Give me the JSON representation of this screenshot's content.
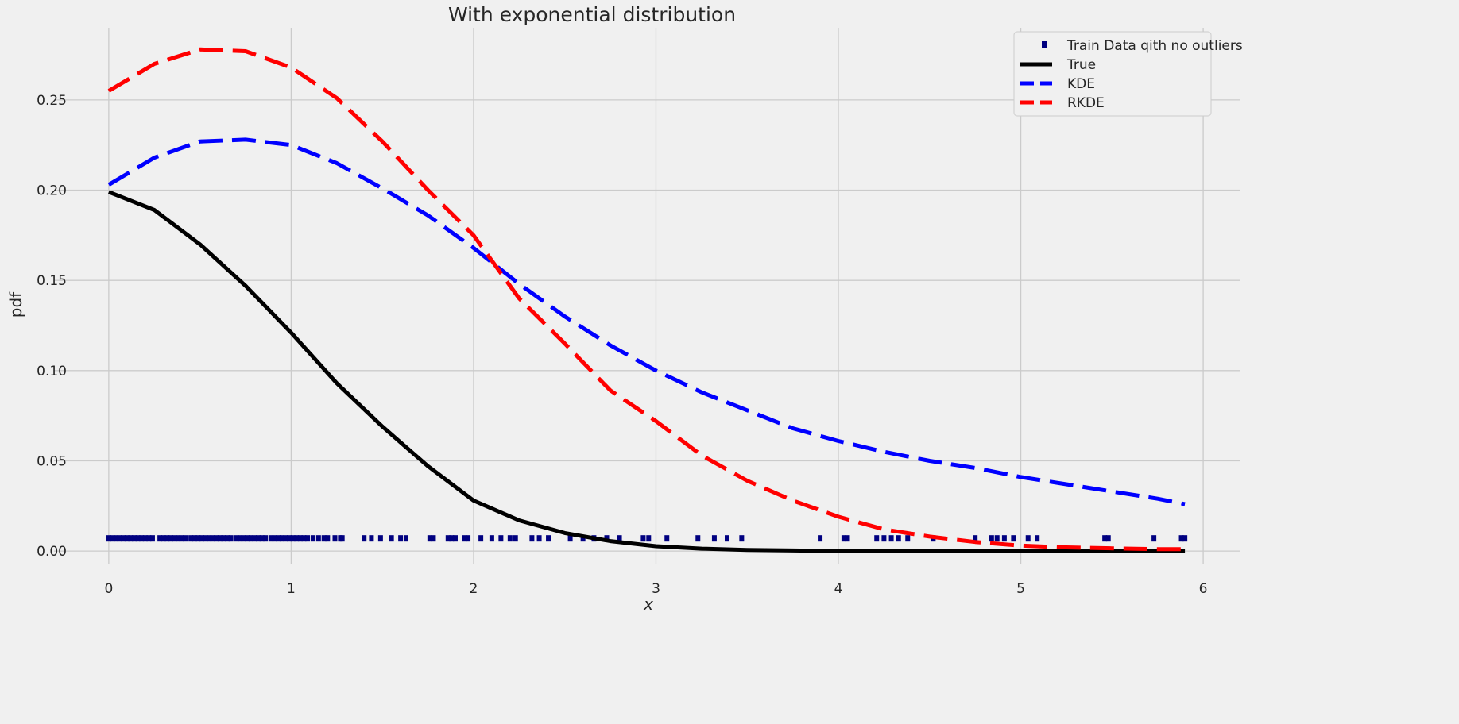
{
  "chart_data": {
    "type": "line",
    "title": "With exponential distribution",
    "xlabel": "x",
    "ylabel": "pdf",
    "xlim": [
      -0.3,
      6.2
    ],
    "ylim": [
      -0.007,
      0.29
    ],
    "xticks": [
      0,
      1,
      2,
      3,
      4,
      5,
      6
    ],
    "xtick_labels": [
      "0",
      "1",
      "2",
      "3",
      "4",
      "5",
      "6"
    ],
    "yticks": [
      0.0,
      0.05,
      0.1,
      0.15,
      0.2,
      0.25
    ],
    "ytick_labels": [
      "0.00",
      "0.05",
      "0.10",
      "0.15",
      "0.20",
      "0.25"
    ],
    "grid": true,
    "legend_position": "top-right",
    "series": [
      {
        "name": "Train Data qith no outliers",
        "kind": "markers",
        "color": "#000080",
        "y_level": 0.007,
        "x": [
          0.0,
          0.02,
          0.04,
          0.06,
          0.08,
          0.1,
          0.12,
          0.14,
          0.16,
          0.18,
          0.2,
          0.22,
          0.24,
          0.28,
          0.3,
          0.32,
          0.34,
          0.36,
          0.38,
          0.4,
          0.42,
          0.45,
          0.47,
          0.49,
          0.51,
          0.53,
          0.55,
          0.57,
          0.59,
          0.61,
          0.63,
          0.65,
          0.67,
          0.7,
          0.72,
          0.74,
          0.76,
          0.78,
          0.8,
          0.82,
          0.84,
          0.86,
          0.89,
          0.91,
          0.93,
          0.95,
          0.97,
          0.99,
          1.01,
          1.03,
          1.05,
          1.07,
          1.09,
          1.12,
          1.15,
          1.18,
          1.2,
          1.24,
          1.27,
          1.28,
          1.4,
          1.44,
          1.49,
          1.55,
          1.6,
          1.63,
          1.76,
          1.78,
          1.86,
          1.88,
          1.9,
          1.95,
          1.97,
          2.04,
          2.1,
          2.15,
          2.2,
          2.23,
          2.32,
          2.36,
          2.41,
          2.53,
          2.6,
          2.66,
          2.73,
          2.8,
          2.93,
          2.96,
          3.06,
          3.23,
          3.32,
          3.39,
          3.47,
          3.9,
          4.03,
          4.05,
          4.21,
          4.25,
          4.29,
          4.33,
          4.38,
          4.52,
          4.75,
          4.84,
          4.87,
          4.91,
          4.96,
          5.04,
          5.09,
          5.46,
          5.48,
          5.73,
          5.88,
          5.9
        ]
      },
      {
        "name": "True",
        "kind": "line",
        "color": "#000000",
        "dash": "solid",
        "x": [
          0,
          0.25,
          0.5,
          0.75,
          1.0,
          1.25,
          1.5,
          1.75,
          2.0,
          2.25,
          2.5,
          2.75,
          3.0,
          3.25,
          3.5,
          3.75,
          4.0,
          4.5,
          5.0,
          5.5,
          5.9
        ],
        "y": [
          0.199,
          0.189,
          0.17,
          0.147,
          0.121,
          0.093,
          0.069,
          0.047,
          0.028,
          0.017,
          0.01,
          0.0055,
          0.0027,
          0.0013,
          0.0006,
          0.0003,
          0.0001,
          0.0,
          0.0,
          0.0,
          0.0
        ]
      },
      {
        "name": "KDE",
        "kind": "line",
        "color": "#0000ff",
        "dash": "dashed",
        "x": [
          0,
          0.25,
          0.5,
          0.75,
          1.0,
          1.25,
          1.5,
          1.75,
          2.0,
          2.25,
          2.5,
          2.75,
          3.0,
          3.25,
          3.5,
          3.75,
          4.0,
          4.25,
          4.5,
          4.75,
          5.0,
          5.25,
          5.5,
          5.75,
          5.9
        ],
        "y": [
          0.203,
          0.218,
          0.227,
          0.228,
          0.225,
          0.215,
          0.201,
          0.186,
          0.168,
          0.148,
          0.13,
          0.114,
          0.1,
          0.088,
          0.078,
          0.068,
          0.061,
          0.055,
          0.05,
          0.046,
          0.041,
          0.037,
          0.033,
          0.029,
          0.026
        ]
      },
      {
        "name": "RKDE",
        "kind": "line",
        "color": "#ff0000",
        "dash": "dashed",
        "x": [
          0,
          0.25,
          0.5,
          0.75,
          1.0,
          1.25,
          1.5,
          1.75,
          2.0,
          2.25,
          2.5,
          2.75,
          3.0,
          3.25,
          3.5,
          3.75,
          4.0,
          4.25,
          4.5,
          4.75,
          5.0,
          5.25,
          5.5,
          5.75,
          5.9
        ],
        "y": [
          0.255,
          0.27,
          0.278,
          0.277,
          0.268,
          0.251,
          0.227,
          0.2,
          0.175,
          0.14,
          0.115,
          0.089,
          0.072,
          0.053,
          0.039,
          0.028,
          0.019,
          0.012,
          0.008,
          0.005,
          0.003,
          0.002,
          0.0015,
          0.001,
          0.001
        ]
      }
    ]
  }
}
